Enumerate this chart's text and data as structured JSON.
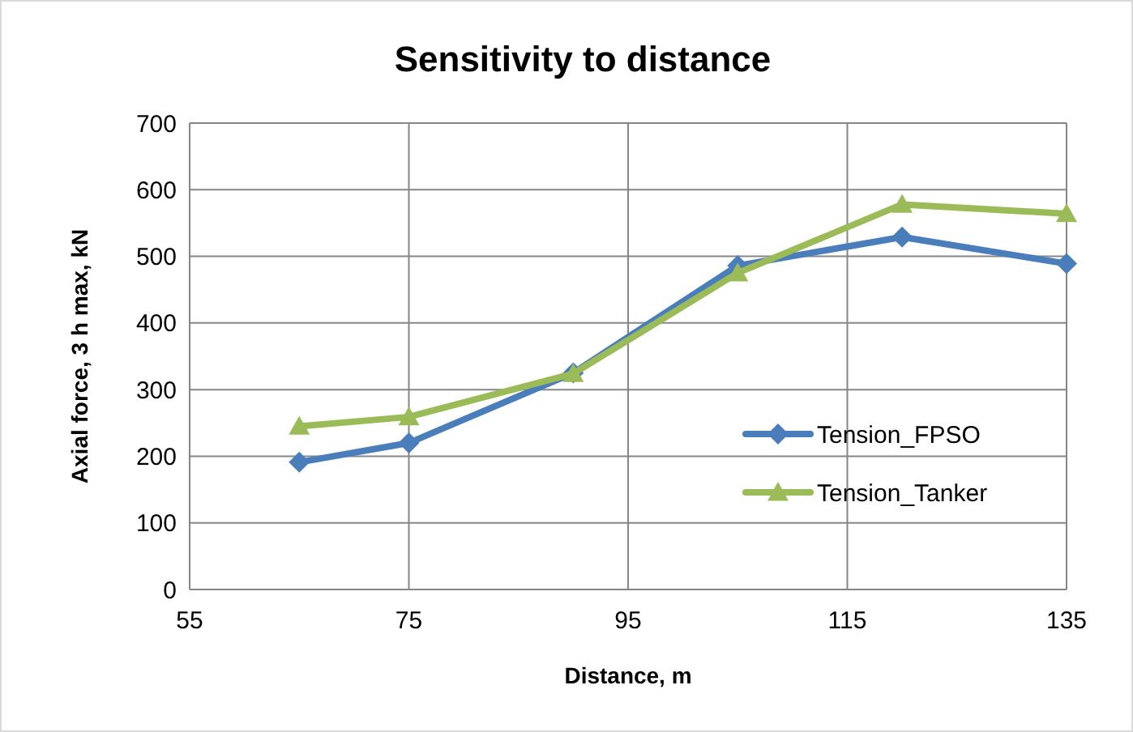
{
  "chart_data": {
    "type": "line",
    "title": "Sensitivity to distance",
    "xlabel": "Distance, m",
    "ylabel": "Axial force, 3 h max, kN",
    "x": [
      65,
      75,
      90,
      105,
      120,
      135
    ],
    "series": [
      {
        "name": "Tension_FPSO",
        "color": "#4a7ebb",
        "values": [
          191,
          220,
          325,
          486,
          529,
          489
        ],
        "marker": "diamond"
      },
      {
        "name": "Tension_Tanker",
        "color": "#9bbb59",
        "values": [
          245,
          259,
          324,
          475,
          578,
          564
        ],
        "marker": "triangle"
      }
    ],
    "xlim": [
      55,
      135
    ],
    "xticks": [
      55,
      75,
      95,
      115,
      135
    ],
    "ylim": [
      0,
      700
    ],
    "yticks": [
      0,
      100,
      200,
      300,
      400,
      500,
      600,
      700
    ],
    "grid": true,
    "legend": "right",
    "line_style": "solid"
  }
}
